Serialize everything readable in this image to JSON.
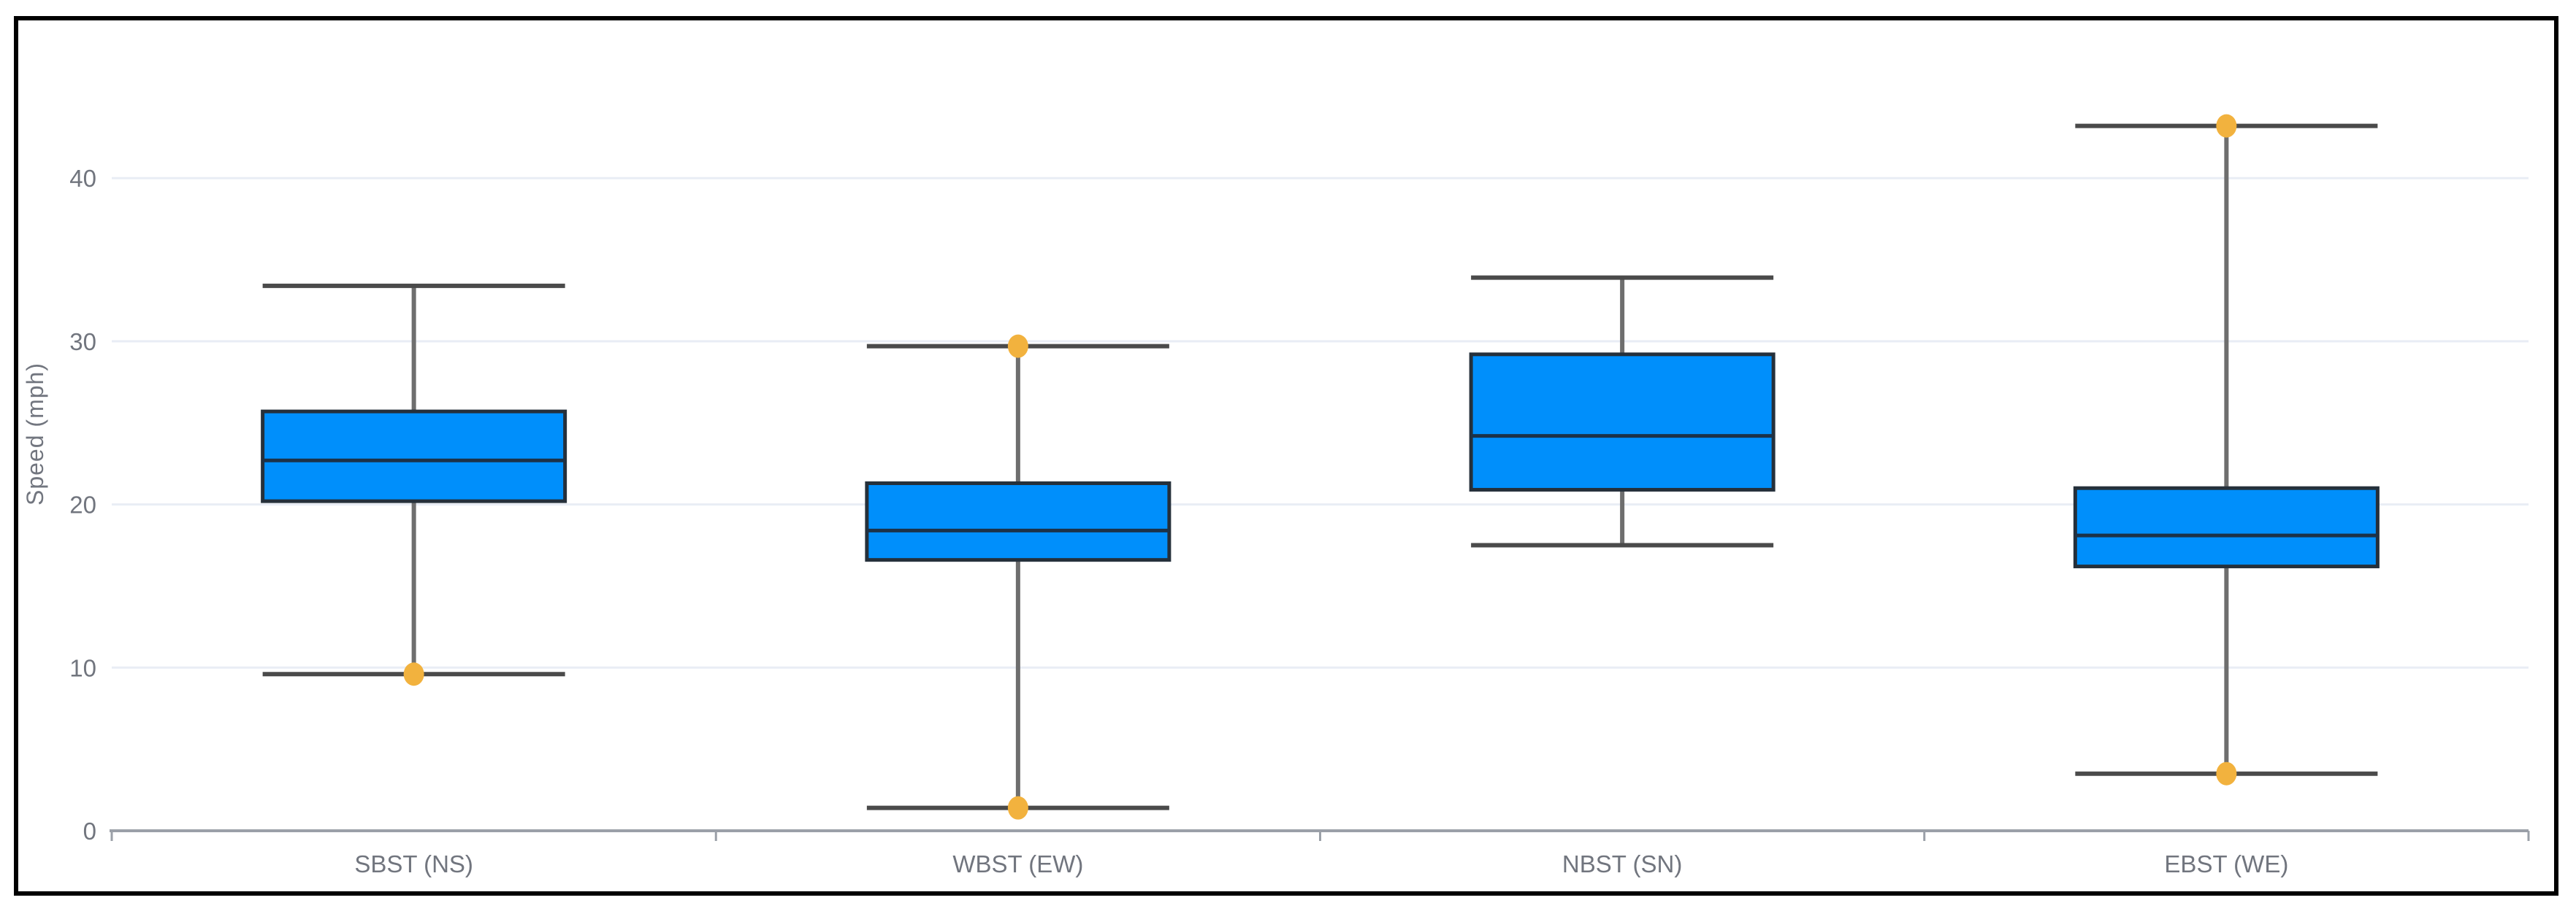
{
  "chart": {
    "y_axis_title": "Speed (mph)",
    "colors": {
      "box_fill": "#008FFB",
      "box_border": "#25303B",
      "median_line": "#1C3248",
      "whisker_stem": "#6E6E6E",
      "whisker_cap": "#4A4A4A",
      "outlier": "#F2B23E",
      "gridline": "#E9EDF5",
      "axis_line": "#9BA0A8",
      "tick_label": "#71757E",
      "frame": "#000000"
    }
  },
  "chart_data": {
    "type": "boxplot",
    "title": "",
    "xlabel": "",
    "ylabel": "Speed (mph)",
    "categories": [
      "SBST (NS)",
      "WBST (EW)",
      "NBST (SN)",
      "EBST (WE)"
    ],
    "series": [
      {
        "name": "SBST (NS)",
        "low": 9.6,
        "q1": 20.2,
        "median": 22.7,
        "q3": 25.7,
        "high": 33.4,
        "outliers": [
          9.6
        ]
      },
      {
        "name": "WBST (EW)",
        "low": 1.4,
        "q1": 16.6,
        "median": 18.4,
        "q3": 21.3,
        "high": 29.7,
        "outliers": [
          29.7,
          1.4
        ]
      },
      {
        "name": "NBST (SN)",
        "low": 17.5,
        "q1": 20.9,
        "median": 24.2,
        "q3": 29.2,
        "high": 33.9,
        "outliers": []
      },
      {
        "name": "EBST (WE)",
        "low": 3.5,
        "q1": 16.2,
        "median": 18.1,
        "q3": 21.0,
        "high": 43.2,
        "outliers": [
          43.2,
          3.5
        ]
      }
    ],
    "yticks": [
      0,
      10,
      20,
      30,
      40
    ],
    "ylim": [
      0,
      47.5
    ],
    "grid": true,
    "legend": "none"
  }
}
